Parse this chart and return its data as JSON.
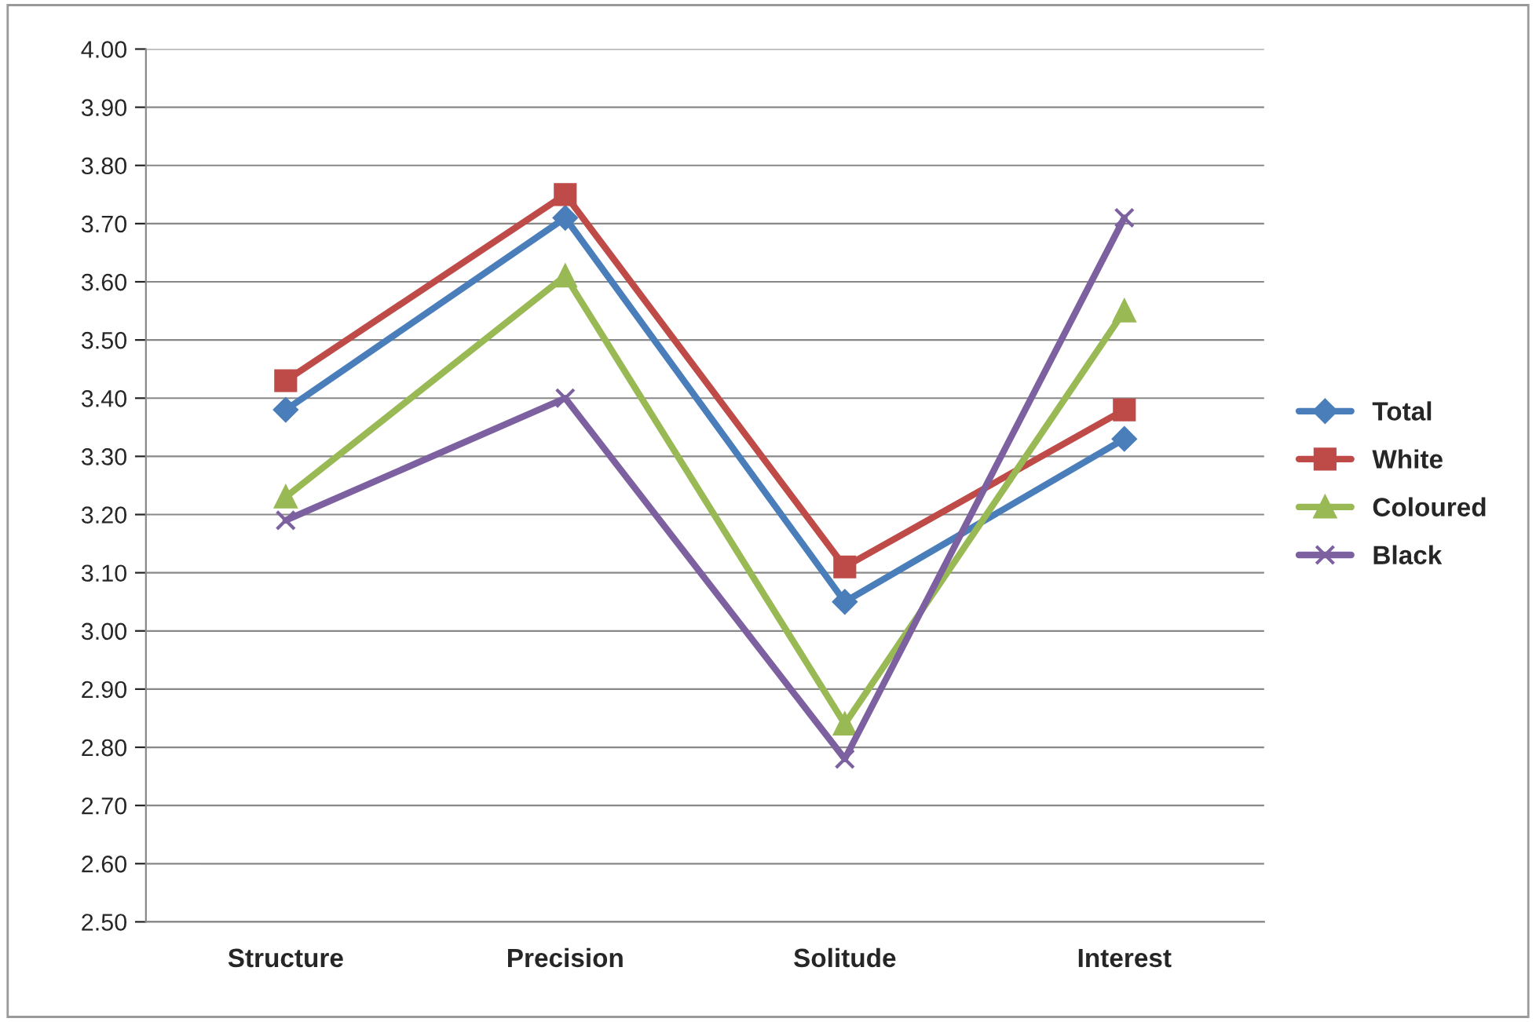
{
  "chart_data": {
    "type": "line",
    "categories": [
      "Structure",
      "Precision",
      "Solitude",
      "Interest"
    ],
    "series": [
      {
        "name": "Total",
        "color": "#4a7ebb",
        "marker": "diamond",
        "values": [
          3.38,
          3.71,
          3.05,
          3.33
        ]
      },
      {
        "name": "White",
        "color": "#be4b48",
        "marker": "square",
        "values": [
          3.43,
          3.75,
          3.11,
          3.38
        ]
      },
      {
        "name": "Coloured",
        "color": "#98b954",
        "marker": "triangle",
        "values": [
          3.23,
          3.61,
          2.84,
          3.55
        ]
      },
      {
        "name": "Black",
        "color": "#7d60a0",
        "marker": "cross",
        "values": [
          3.19,
          3.4,
          2.78,
          3.71
        ]
      }
    ],
    "ylim": [
      2.5,
      4.0
    ],
    "yticks": [
      {
        "value": 2.5,
        "label": "2.50"
      },
      {
        "value": 2.6,
        "label": "2.60"
      },
      {
        "value": 2.7,
        "label": "2.70"
      },
      {
        "value": 2.8,
        "label": "2.80"
      },
      {
        "value": 2.9,
        "label": "2.90"
      },
      {
        "value": 3.0,
        "label": "3.00"
      },
      {
        "value": 3.1,
        "label": "3.10"
      },
      {
        "value": 3.2,
        "label": "3.20"
      },
      {
        "value": 3.3,
        "label": "3.30"
      },
      {
        "value": 3.4,
        "label": "3.40"
      },
      {
        "value": 3.5,
        "label": "3.50"
      },
      {
        "value": 3.6,
        "label": "3.60"
      },
      {
        "value": 3.7,
        "label": "3.70"
      },
      {
        "value": 3.8,
        "label": "3.80"
      },
      {
        "value": 3.9,
        "label": "3.90"
      },
      {
        "value": 4.0,
        "label": "4.00"
      }
    ],
    "grid": "y",
    "legend": "right",
    "line_style": "solid"
  }
}
